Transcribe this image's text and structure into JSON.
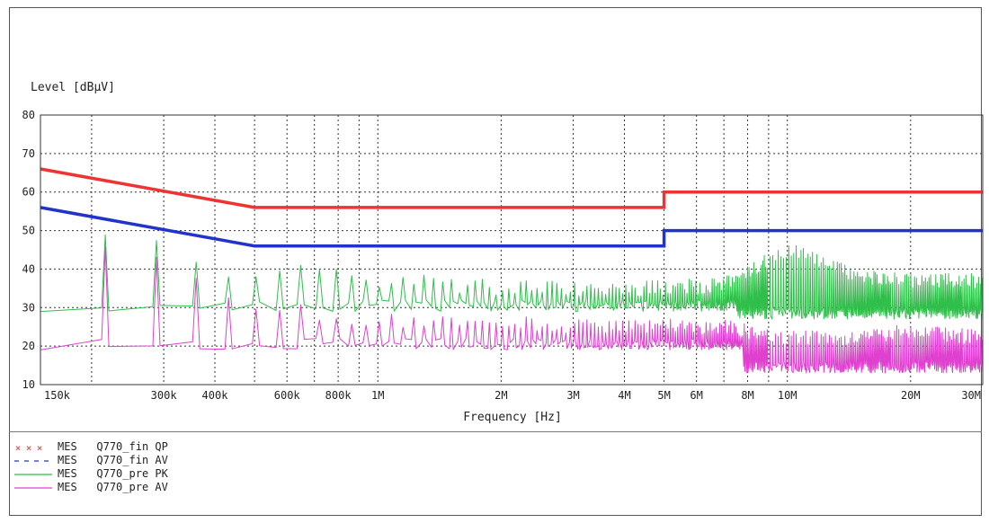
{
  "chart_data": {
    "type": "line",
    "ylabel": "Level [dBµV]",
    "xlabel": "Frequency [Hz]",
    "x_scale": "log",
    "xlim": [
      150000,
      30000000
    ],
    "ylim": [
      10,
      80
    ],
    "y_ticks": [
      10,
      20,
      30,
      40,
      50,
      60,
      70,
      80
    ],
    "x_tick_labels": [
      {
        "value": 150000,
        "label": "150k"
      },
      {
        "value": 300000,
        "label": "300k"
      },
      {
        "value": 400000,
        "label": "400k"
      },
      {
        "value": 600000,
        "label": "600k"
      },
      {
        "value": 800000,
        "label": "800k"
      },
      {
        "value": 1000000,
        "label": "1M"
      },
      {
        "value": 2000000,
        "label": "2M"
      },
      {
        "value": 3000000,
        "label": "3M"
      },
      {
        "value": 4000000,
        "label": "4M"
      },
      {
        "value": 5000000,
        "label": "5M"
      },
      {
        "value": 6000000,
        "label": "6M"
      },
      {
        "value": 8000000,
        "label": "8M"
      },
      {
        "value": 10000000,
        "label": "10M"
      },
      {
        "value": 20000000,
        "label": "20M"
      },
      {
        "value": 30000000,
        "label": "30M"
      }
    ],
    "grid_x": [
      200000,
      300000,
      400000,
      500000,
      600000,
      700000,
      800000,
      900000,
      1000000,
      2000000,
      3000000,
      4000000,
      5000000,
      6000000,
      7000000,
      8000000,
      9000000,
      10000000,
      20000000
    ],
    "grid": true,
    "limit_lines": [
      {
        "id": "qp",
        "color": "#ee3333",
        "points": [
          [
            150000,
            66
          ],
          [
            500000,
            56
          ],
          [
            5000000,
            56
          ],
          [
            5000000,
            60
          ],
          [
            30000000,
            60
          ]
        ]
      },
      {
        "id": "av",
        "color": "#2233cc",
        "points": [
          [
            150000,
            56
          ],
          [
            500000,
            46
          ],
          [
            5000000,
            46
          ],
          [
            5000000,
            50
          ],
          [
            30000000,
            50
          ]
        ]
      }
    ],
    "series": [
      {
        "id": "pk",
        "color": "#2fbf4a",
        "baseline_low": 29,
        "baseline_high": 29,
        "peaks": [
          [
            180000,
            48
          ],
          [
            250000,
            50
          ],
          [
            320000,
            43
          ],
          [
            400000,
            41
          ],
          [
            470000,
            37
          ],
          [
            540000,
            40
          ],
          [
            610000,
            40
          ],
          [
            680000,
            40
          ],
          [
            750000,
            40
          ],
          [
            820000,
            38
          ],
          [
            900000,
            38
          ],
          [
            1000000,
            37
          ],
          [
            1200000,
            37
          ],
          [
            1500000,
            36
          ],
          [
            2000000,
            35
          ],
          [
            3000000,
            35
          ],
          [
            4000000,
            35
          ],
          [
            5000000,
            35
          ],
          [
            7000000,
            36
          ],
          [
            10000000,
            45
          ],
          [
            15000000,
            38
          ],
          [
            20000000,
            37
          ],
          [
            30000000,
            37
          ]
        ]
      },
      {
        "id": "av_meas",
        "color": "#e040d0",
        "baseline_low": 19,
        "baseline_high": 19,
        "peaks": [
          [
            180000,
            39
          ],
          [
            250000,
            49
          ],
          [
            320000,
            39
          ],
          [
            400000,
            35
          ],
          [
            470000,
            33
          ],
          [
            540000,
            30
          ],
          [
            610000,
            29
          ],
          [
            680000,
            29
          ],
          [
            750000,
            28
          ],
          [
            820000,
            28
          ],
          [
            900000,
            27
          ],
          [
            1000000,
            27
          ],
          [
            1200000,
            26
          ],
          [
            1500000,
            26
          ],
          [
            2000000,
            26
          ],
          [
            3000000,
            25
          ],
          [
            4000000,
            25
          ],
          [
            5000000,
            25
          ],
          [
            7000000,
            25
          ],
          [
            10000000,
            22
          ],
          [
            15000000,
            22
          ],
          [
            20000000,
            24
          ],
          [
            30000000,
            22
          ]
        ]
      }
    ]
  },
  "legend": {
    "items": [
      {
        "kind": "MES",
        "name": "Q770_fin QP",
        "color": "#ee3333",
        "style": "x-marks"
      },
      {
        "kind": "MES",
        "name": "Q770_fin AV",
        "color": "#2233cc",
        "style": "dashes"
      },
      {
        "kind": "MES",
        "name": "Q770_pre PK",
        "color": "#2fbf4a",
        "style": "line"
      },
      {
        "kind": "MES",
        "name": "Q770_pre AV",
        "color": "#e040d0",
        "style": "line"
      }
    ]
  }
}
